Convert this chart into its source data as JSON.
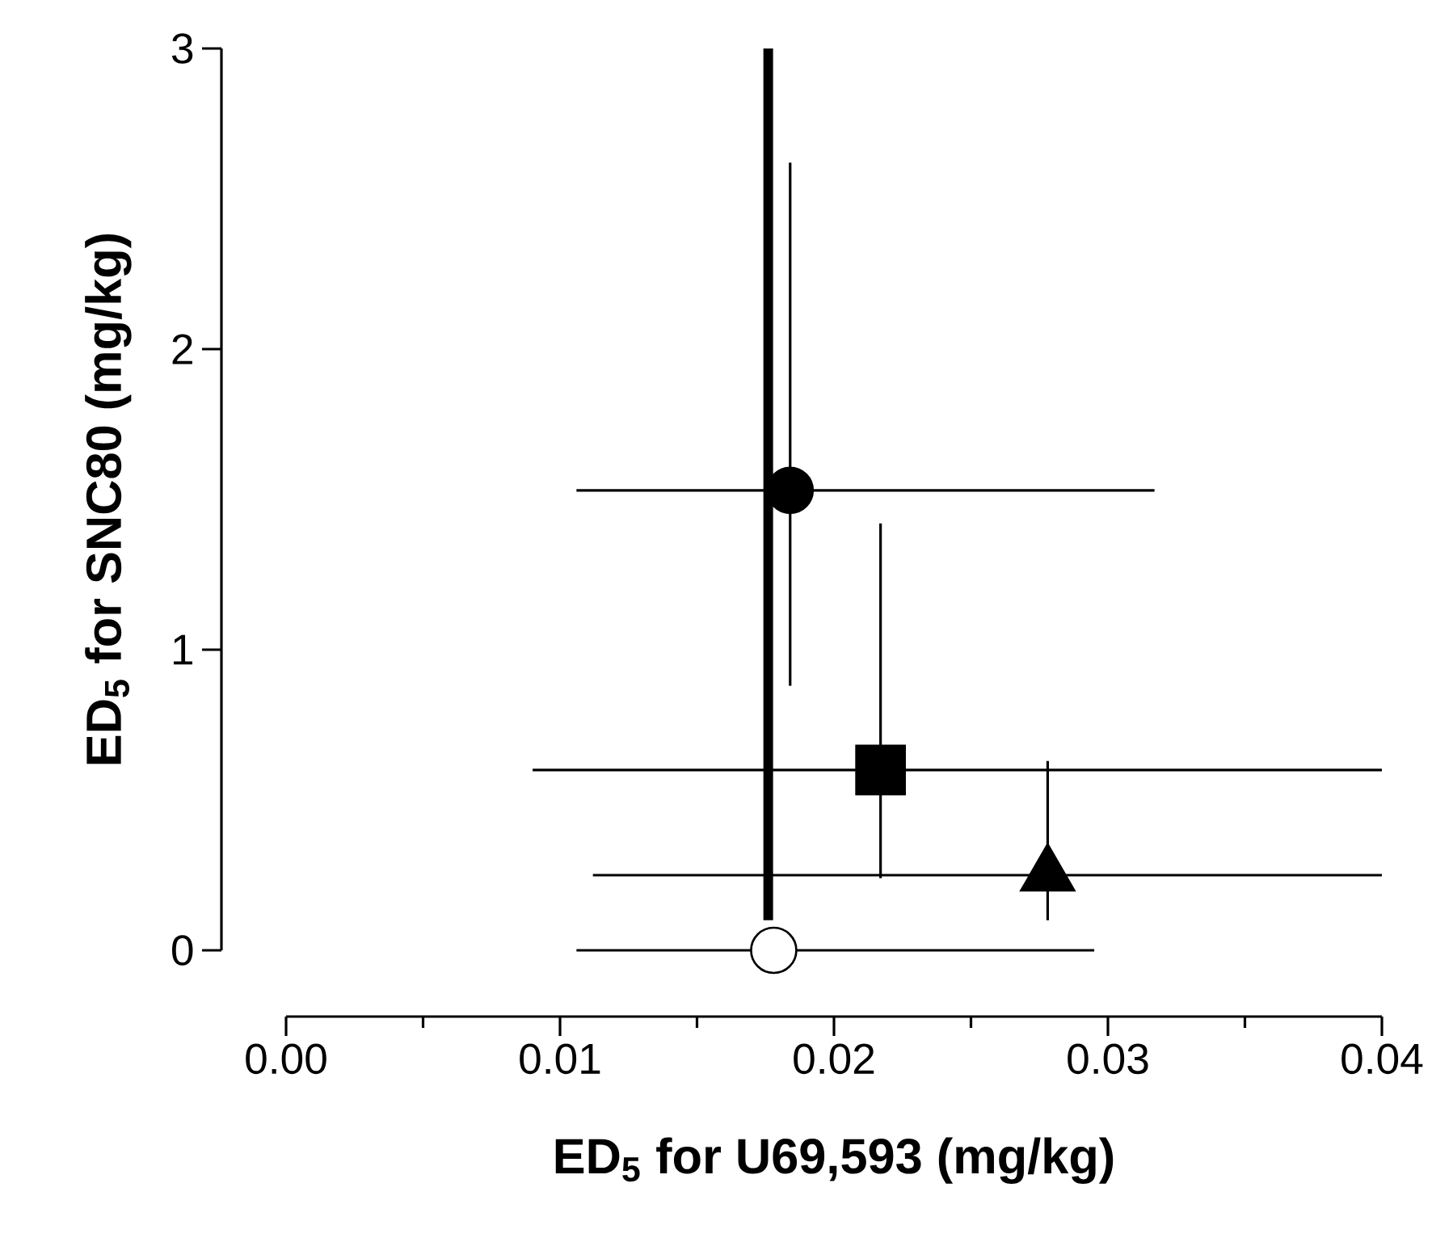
{
  "chart_data": {
    "type": "scatter",
    "xlabel": "ED$_{5}$ for U69,593 (mg/kg)",
    "ylabel": "ED$_{5}$ for SNC80 (mg/kg)",
    "xlim": [
      0,
      0.04
    ],
    "ylim": [
      0,
      3
    ],
    "xticks": [
      {
        "value": 0,
        "label": "0.00"
      },
      {
        "value": 0.01,
        "label": "0.01"
      },
      {
        "value": 0.02,
        "label": "0.02"
      },
      {
        "value": 0.03,
        "label": "0.03"
      },
      {
        "value": 0.04,
        "label": "0.04"
      }
    ],
    "yticks": [
      0,
      1,
      2,
      3
    ],
    "grid": false,
    "series": [
      {
        "type": "line",
        "color": "#000000",
        "marker": "none",
        "x": [
          0.0176,
          0.0176
        ],
        "values": [
          0.1,
          3
        ]
      },
      {
        "color": "#000000",
        "marker": "circle",
        "x": [
          0.0184
        ],
        "values": [
          1.53
        ],
        "xerrors": [
          [
            0.0106,
            0.0317
          ]
        ],
        "errors": [
          [
            0.88,
            2.62
          ]
        ]
      },
      {
        "color": "#000000",
        "marker": "square",
        "x": [
          0.0217
        ],
        "values": [
          0.6
        ],
        "xerrors": [
          [
            0.009,
            0.04
          ]
        ],
        "errors": [
          [
            0.24,
            1.42
          ]
        ]
      },
      {
        "color": "#000000",
        "marker": "triangle",
        "x": [
          0.0278
        ],
        "values": [
          0.25
        ],
        "xerrors": [
          [
            0.0112,
            0.04
          ]
        ],
        "errors": [
          [
            0.1,
            0.63
          ]
        ]
      },
      {
        "color": "#ffffff",
        "marker": "circle",
        "x": [
          0.0178
        ],
        "values": [
          0
        ],
        "xerrors": [
          [
            0.0106,
            0.0295
          ]
        ]
      }
    ]
  }
}
